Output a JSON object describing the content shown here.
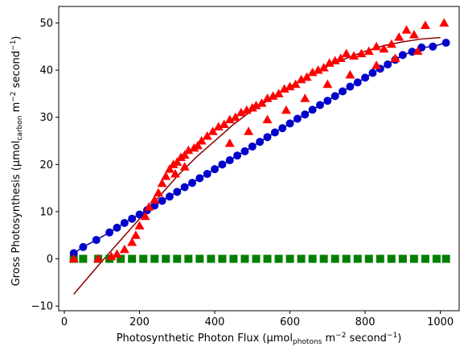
{
  "chart_data": {
    "type": "scatter",
    "xlabel_parts": {
      "main": "Photosynthetic Photon Flux (µmol",
      "sub": "photons",
      "mid": " m",
      "sup1": "−2",
      "mid2": " second",
      "sup2": "−1",
      "end": ")"
    },
    "ylabel_parts": {
      "main": "Gross Photosynthesis (µmol",
      "sub": "carbon",
      "mid": " m",
      "sup1": "−2",
      "mid2": " second",
      "sup2": "−1",
      "end": ")"
    },
    "xlim": [
      -15,
      1050
    ],
    "ylim": [
      -11,
      53.5
    ],
    "xticks": [
      0,
      200,
      400,
      600,
      800,
      1000
    ],
    "yticks": [
      -10,
      0,
      10,
      20,
      30,
      40,
      50
    ],
    "grid": false,
    "legend": "none",
    "series": [
      {
        "marker": "circle",
        "color": "#0000cc",
        "line_color": "#00008b",
        "x": [
          25,
          50,
          85,
          120,
          140,
          160,
          180,
          200,
          220,
          240,
          260,
          280,
          300,
          320,
          340,
          360,
          380,
          400,
          420,
          440,
          460,
          480,
          500,
          520,
          540,
          560,
          580,
          600,
          620,
          640,
          660,
          680,
          700,
          720,
          740,
          760,
          780,
          800,
          820,
          840,
          860,
          880,
          900,
          925,
          950,
          980,
          1015
        ],
        "y": [
          1.2,
          2.5,
          4.0,
          5.6,
          6.6,
          7.6,
          8.5,
          9.4,
          10.3,
          11.3,
          12.3,
          13.2,
          14.2,
          15.2,
          16.1,
          17.1,
          18.0,
          19.0,
          20.0,
          20.9,
          21.9,
          22.8,
          23.8,
          24.8,
          25.8,
          26.8,
          27.7,
          28.7,
          29.7,
          30.6,
          31.6,
          32.6,
          33.5,
          34.5,
          35.5,
          36.5,
          37.4,
          38.4,
          39.4,
          40.3,
          41.2,
          42.2,
          43.2,
          43.9,
          44.8,
          45.0,
          45.8
        ]
      },
      {
        "marker": "triangle",
        "color": "#ff0000",
        "x": [
          25,
          90,
          125,
          140,
          160,
          180,
          190,
          200,
          215,
          225,
          240,
          250,
          260,
          270,
          280,
          290,
          300,
          310,
          320,
          330,
          345,
          355,
          365,
          380,
          395,
          410,
          425,
          440,
          455,
          470,
          485,
          500,
          510,
          525,
          540,
          555,
          570,
          585,
          600,
          615,
          630,
          645,
          660,
          675,
          690,
          705,
          720,
          735,
          750,
          770,
          790,
          810,
          830,
          850,
          870,
          890,
          910,
          930,
          960,
          1010,
          295,
          320,
          440,
          490,
          540,
          590,
          640,
          700,
          760,
          830,
          880,
          940
        ],
        "y": [
          0.0,
          0.0,
          0.5,
          1.0,
          2.0,
          3.5,
          5.0,
          7.0,
          9.0,
          11.0,
          12.5,
          14.0,
          16.0,
          17.5,
          19.0,
          20.0,
          20.5,
          21.5,
          22.0,
          23.0,
          23.5,
          24.0,
          25.0,
          26.0,
          27.0,
          28.0,
          28.5,
          29.5,
          30.0,
          31.0,
          31.5,
          32.0,
          32.5,
          33.0,
          34.0,
          34.5,
          35.0,
          36.0,
          36.5,
          37.0,
          38.0,
          38.5,
          39.5,
          40.0,
          40.5,
          41.5,
          42.0,
          42.5,
          43.5,
          43.0,
          43.5,
          44.0,
          45.0,
          44.5,
          45.5,
          47.0,
          48.5,
          47.5,
          49.5,
          50.0,
          18.0,
          19.5,
          24.5,
          27.0,
          29.5,
          31.5,
          34.0,
          37.0,
          39.0,
          41.0,
          42.5,
          44.0
        ]
      },
      {
        "marker": "square",
        "color": "#008000",
        "x": [
          25,
          50,
          90,
          120,
          150,
          180,
          210,
          240,
          270,
          300,
          330,
          360,
          390,
          420,
          450,
          480,
          510,
          540,
          570,
          600,
          630,
          660,
          690,
          720,
          750,
          780,
          810,
          840,
          870,
          900,
          930,
          960,
          990,
          1015
        ],
        "y": [
          0,
          0,
          0,
          0,
          0,
          0,
          0,
          0,
          0,
          0,
          0,
          0,
          0,
          0,
          0,
          0,
          0,
          0,
          0,
          0,
          0,
          0,
          0,
          0,
          0,
          0,
          0,
          0,
          0,
          0,
          0,
          0,
          0,
          0
        ]
      }
    ],
    "fit_line": {
      "color": "#8b0000",
      "x": [
        25,
        100,
        150,
        200,
        250,
        300,
        350,
        400,
        450,
        500,
        550,
        600,
        650,
        700,
        750,
        800,
        850,
        900,
        950,
        1000
      ],
      "y": [
        -7.5,
        -0.5,
        4.0,
        8.5,
        13.0,
        17.5,
        21.5,
        25.0,
        28.5,
        31.5,
        34.0,
        36.5,
        38.8,
        40.8,
        42.5,
        44.0,
        45.2,
        46.0,
        46.6,
        46.9
      ]
    }
  }
}
